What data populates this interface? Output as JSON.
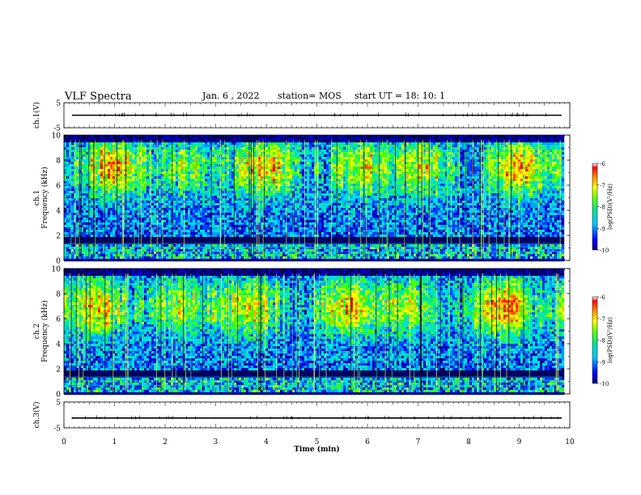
{
  "header": {
    "title": "VLF Spectra",
    "date": "Jan. 6 , 2022",
    "station": "station= MOS",
    "start": "start UT = 18: 10: 1"
  },
  "chart_data": {
    "type": "heatmap",
    "panels": [
      {
        "kind": "waveform",
        "ylabel": "ch.1(V)",
        "ylim": [
          -5,
          5
        ],
        "yticks": [
          "5",
          "-5"
        ],
        "trace_level": 0
      },
      {
        "kind": "spectrogram",
        "ylabel": "ch.1\nFrequency (kHz)",
        "ylim": [
          0,
          10
        ],
        "yticks": [
          "0",
          "2",
          "4",
          "6",
          "8",
          "10"
        ],
        "colorbar": {
          "label": "log(PSD)(V²/Hz)",
          "range": [
            -10,
            -6
          ],
          "ticks": [
            "-10",
            "-9",
            "-8",
            "-7",
            "-6"
          ]
        },
        "band_peak_khz": 7.5
      },
      {
        "kind": "spectrogram",
        "ylabel": "ch.2\nFrequency (kHz)",
        "ylim": [
          0,
          10
        ],
        "yticks": [
          "0",
          "2",
          "4",
          "6",
          "8",
          "10"
        ],
        "colorbar": {
          "label": "log(PSD)(V²/Hz)",
          "range": [
            -10,
            -6
          ],
          "ticks": [
            "-10",
            "-9",
            "-8",
            "-7",
            "-6"
          ]
        },
        "band_peak_khz": 7.0
      },
      {
        "kind": "waveform",
        "ylabel": "ch.3(V)",
        "ylim": [
          -5,
          5
        ],
        "yticks": [
          "5",
          "-5"
        ],
        "trace_level": -1.2
      }
    ],
    "xaxis": {
      "label": "Time (min)",
      "range": [
        0,
        10
      ],
      "ticks": [
        "0",
        "1",
        "2",
        "3",
        "4",
        "5",
        "6",
        "7",
        "8",
        "9",
        "10"
      ],
      "data_end_min": 9.85
    }
  }
}
